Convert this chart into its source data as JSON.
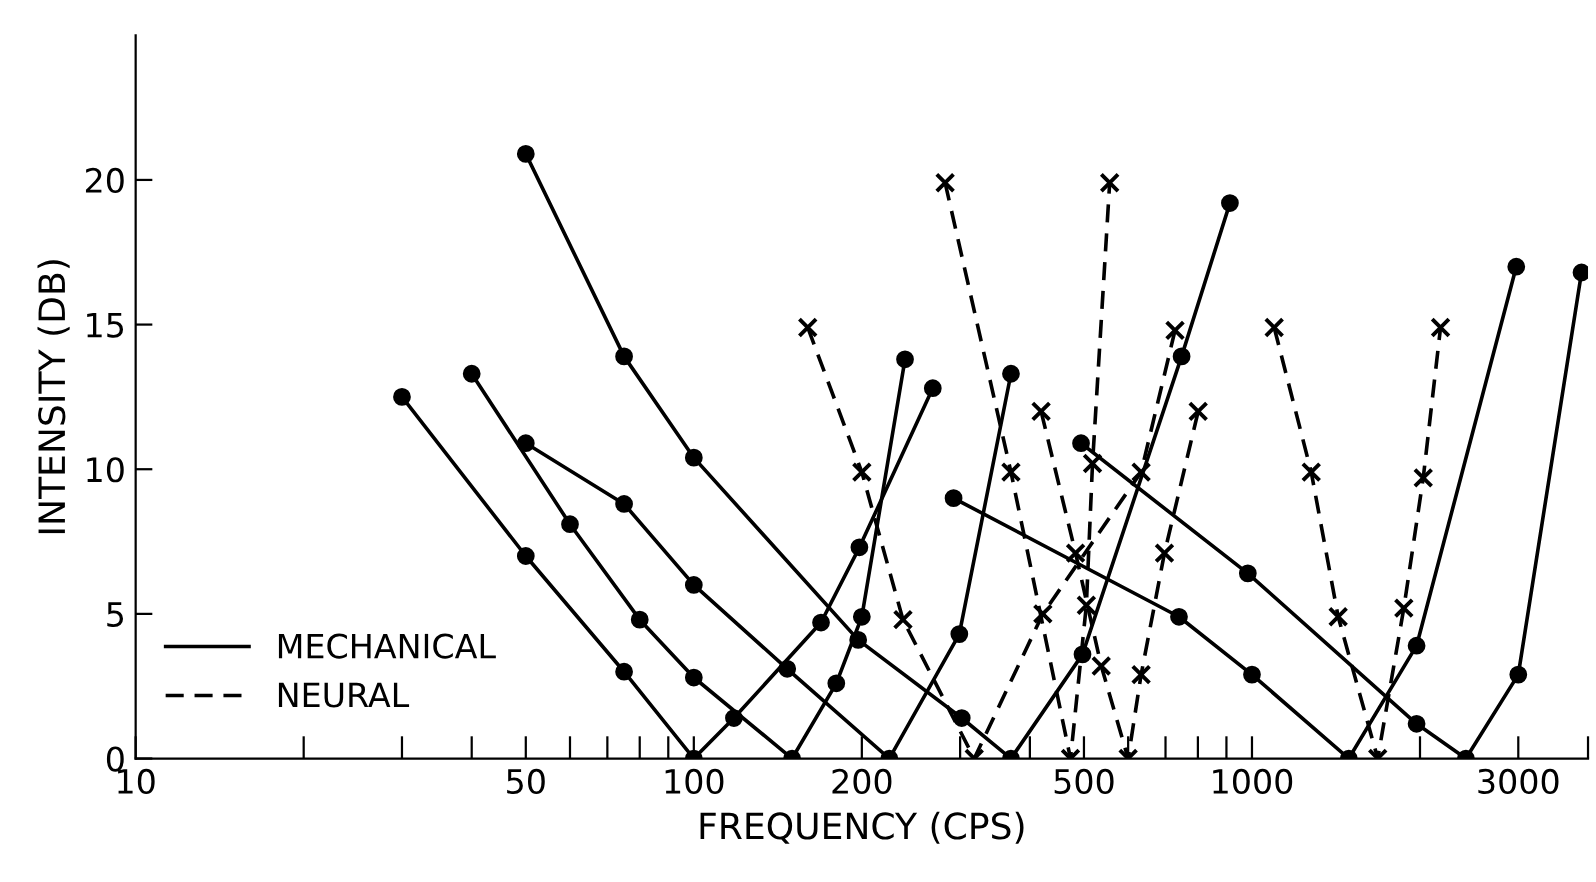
{
  "chart_data": {
    "type": "line",
    "xlabel": "FREQUENCY (CPS)",
    "ylabel": "INTENSITY (DB)",
    "log": "x",
    "xlim": [
      10,
      4000
    ],
    "ylim": [
      0,
      25
    ],
    "xticks": [
      10,
      {
        "value": 20,
        "label": null
      },
      {
        "value": 30,
        "label": null
      },
      {
        "value": 40,
        "label": null
      },
      50,
      {
        "value": 60,
        "label": null
      },
      {
        "value": 70,
        "label": null
      },
      {
        "value": 80,
        "label": null
      },
      {
        "value": 90,
        "label": null
      },
      100,
      200,
      {
        "value": 300,
        "label": null
      },
      {
        "value": 400,
        "label": null
      },
      500,
      {
        "value": 600,
        "label": null
      },
      {
        "value": 700,
        "label": null
      },
      {
        "value": 800,
        "label": null
      },
      {
        "value": 900,
        "label": null
      },
      1000,
      {
        "value": 2000,
        "label": null
      },
      3000,
      {
        "value": 4000,
        "label": null
      }
    ],
    "yticks": [
      0,
      5,
      10,
      15,
      20
    ],
    "grid": false,
    "legend": "bottom left",
    "series": [
      {
        "name": "MECHANICAL",
        "color": "#000000",
        "line_style": "solid",
        "marker": "circle",
        "x": [
          30,
          50,
          75,
          100,
          118,
          169,
          198,
          268
        ],
        "values": [
          12.5,
          7,
          3,
          0,
          1.4,
          4.7,
          7.3,
          12.8
        ]
      },
      {
        "color": "#000000",
        "line_style": "solid",
        "marker": "circle",
        "x": [
          40,
          60,
          80,
          100,
          150,
          180,
          200,
          239
        ],
        "values": [
          13.3,
          8.1,
          4.8,
          2.8,
          0,
          2.6,
          4.9,
          13.8
        ]
      },
      {
        "color": "#000000",
        "line_style": "solid",
        "marker": "circle",
        "x": [
          50,
          75,
          100,
          147,
          224,
          299,
          370
        ],
        "values": [
          10.9,
          8.8,
          6.0,
          3.1,
          0,
          4.3,
          13.3
        ]
      },
      {
        "color": "#000000",
        "line_style": "solid",
        "marker": "circle",
        "x": [
          50,
          75,
          100,
          197,
          302,
          370,
          497,
          748,
          913
        ],
        "values": [
          20.9,
          13.9,
          10.4,
          4.1,
          1.4,
          0,
          3.6,
          13.9,
          19.2
        ]
      },
      {
        "color": "#000000",
        "line_style": "solid",
        "marker": "circle",
        "x": [
          292,
          740,
          1000,
          1491,
          1972,
          2975
        ],
        "values": [
          9.0,
          4.9,
          2.9,
          0,
          3.9,
          17
        ]
      },
      {
        "color": "#000000",
        "line_style": "solid",
        "marker": "circle",
        "x": [
          494,
          983,
          1972,
          2417,
          3000,
          3894
        ],
        "values": [
          10.9,
          6.4,
          1.2,
          0,
          2.9,
          16.8
        ]
      },
      {
        "name": "NEURAL",
        "color": "#000000",
        "line_style": "dashed",
        "marker": "cross",
        "x": [
          160,
          200,
          237,
          318,
          422,
          633,
          728
        ],
        "values": [
          14.9,
          9.9,
          4.8,
          0,
          5,
          9.9,
          14.8
        ]
      },
      {
        "color": "#000000",
        "line_style": "dashed",
        "marker": "cross",
        "x": [
          282,
          370,
          473,
          505,
          518,
          556
        ],
        "values": [
          19.9,
          9.9,
          0,
          5.3,
          10.2,
          19.9
        ]
      },
      {
        "color": "#000000",
        "line_style": "dashed",
        "marker": "cross",
        "x": [
          419,
          483,
          537,
          600,
          633,
          697,
          801
        ],
        "values": [
          12,
          7.1,
          3.2,
          0,
          2.9,
          7.1,
          12
        ]
      },
      {
        "color": "#000000",
        "line_style": "dashed",
        "marker": "cross",
        "x": [
          1096,
          1277,
          1427,
          1680,
          1871,
          2027,
          2177
        ],
        "values": [
          14.9,
          9.9,
          4.9,
          0,
          5.2,
          9.7,
          14.9
        ]
      }
    ]
  }
}
